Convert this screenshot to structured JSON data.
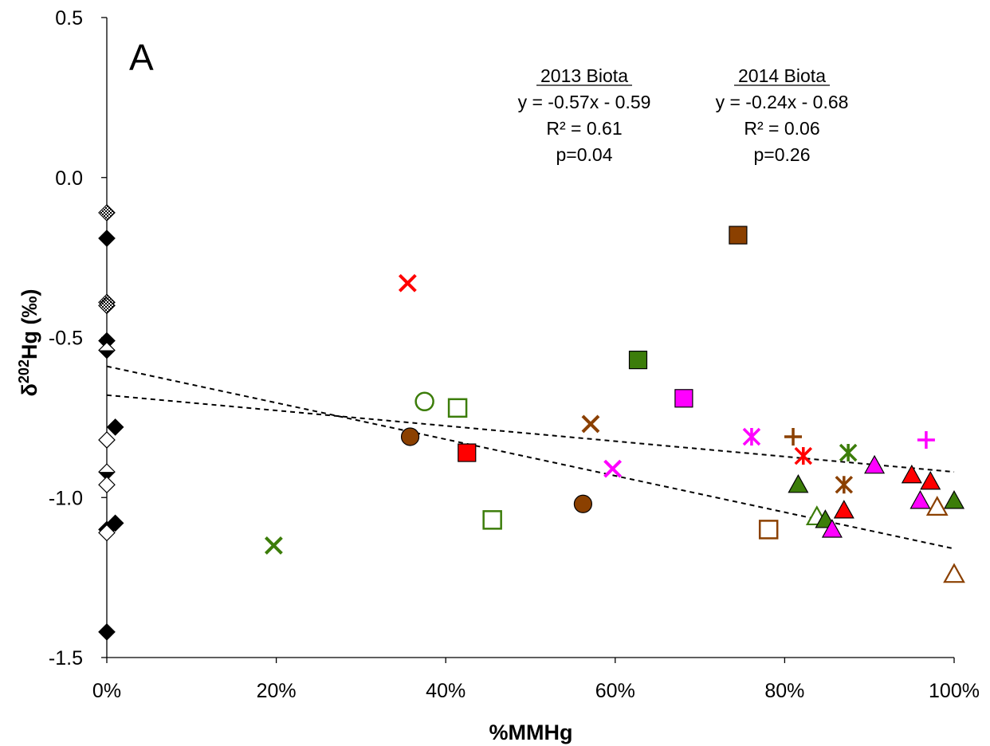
{
  "chart_data": {
    "type": "scatter",
    "panel_label": "A",
    "xlabel": "%MMHg",
    "ylabel_main": "δ",
    "ylabel_sup": "202",
    "ylabel_rest": "Hg (‰)",
    "xlim": [
      0,
      1
    ],
    "ylim": [
      -1.5,
      0.5
    ],
    "x_ticks": [
      {
        "value": 0,
        "label": "0%"
      },
      {
        "value": 0.2,
        "label": "20%"
      },
      {
        "value": 0.4,
        "label": "40%"
      },
      {
        "value": 0.6,
        "label": "60%"
      },
      {
        "value": 0.8,
        "label": "80%"
      },
      {
        "value": 1.0,
        "label": "100%"
      }
    ],
    "y_ticks": [
      {
        "value": 0.5,
        "label": "0.5"
      },
      {
        "value": 0.0,
        "label": "0.0"
      },
      {
        "value": -0.5,
        "label": "-0.5"
      },
      {
        "value": -1.0,
        "label": "-1.0"
      },
      {
        "value": -1.5,
        "label": "-1.5"
      }
    ],
    "grid": false,
    "legend": "none",
    "annotations": [
      {
        "heading": "2013 Biota",
        "lines": [
          "y = -0.57x - 0.59",
          "R² = 0.61",
          "p=0.04"
        ]
      },
      {
        "heading": "2014 Biota",
        "lines": [
          "y = -0.24x - 0.68",
          "R² = 0.06",
          "p=0.26"
        ]
      }
    ],
    "trendlines": [
      {
        "slope": -0.57,
        "intercept": -0.59,
        "x_range": [
          0,
          1
        ],
        "style": "dashed",
        "color": "#000000"
      },
      {
        "slope": -0.24,
        "intercept": -0.68,
        "x_range": [
          0,
          1
        ],
        "style": "dashed",
        "color": "#000000"
      }
    ],
    "colors": {
      "red": "#ff0000",
      "green": "#3c7d0a",
      "brown": "#8b4000",
      "magenta": "#ff00ff",
      "black": "#000000"
    },
    "points": [
      {
        "x": 0.0,
        "y": -0.11,
        "marker": "diamond",
        "fill": "hatch",
        "color": "#000000"
      },
      {
        "x": 0.0,
        "y": -0.19,
        "marker": "diamond",
        "fill": "solid",
        "color": "#000000"
      },
      {
        "x": 0.0,
        "y": -0.39,
        "marker": "diamond",
        "fill": "hatch",
        "color": "#000000"
      },
      {
        "x": 0.0,
        "y": -0.4,
        "marker": "diamond",
        "fill": "hatch",
        "color": "#000000"
      },
      {
        "x": 0.0,
        "y": -0.51,
        "marker": "diamond",
        "fill": "solid",
        "color": "#000000"
      },
      {
        "x": 0.0,
        "y": -0.54,
        "marker": "diamond",
        "fill": "half",
        "color": "#000000"
      },
      {
        "x": 0.01,
        "y": -0.78,
        "marker": "diamond",
        "fill": "solid",
        "color": "#000000"
      },
      {
        "x": 0.0,
        "y": -0.82,
        "marker": "diamond",
        "fill": "open",
        "color": "#000000"
      },
      {
        "x": 0.0,
        "y": -0.92,
        "marker": "diamond",
        "fill": "half",
        "color": "#000000"
      },
      {
        "x": 0.0,
        "y": -0.96,
        "marker": "diamond",
        "fill": "open",
        "color": "#000000"
      },
      {
        "x": 0.01,
        "y": -1.08,
        "marker": "diamond",
        "fill": "solid",
        "color": "#000000"
      },
      {
        "x": 0.0,
        "y": -1.1,
        "marker": "diamond",
        "fill": "solid",
        "color": "#000000"
      },
      {
        "x": 0.0,
        "y": -1.11,
        "marker": "diamond",
        "fill": "open",
        "color": "#000000"
      },
      {
        "x": 0.0,
        "y": -1.42,
        "marker": "diamond",
        "fill": "solid",
        "color": "#000000"
      },
      {
        "x": 0.355,
        "y": -0.33,
        "marker": "x",
        "fill": "line",
        "color": "#ff0000"
      },
      {
        "x": 0.425,
        "y": -0.86,
        "marker": "square",
        "fill": "solid",
        "color": "#ff0000"
      },
      {
        "x": 0.822,
        "y": -0.87,
        "marker": "star",
        "fill": "line",
        "color": "#ff0000"
      },
      {
        "x": 0.87,
        "y": -1.04,
        "marker": "triangle",
        "fill": "solid",
        "color": "#ff0000"
      },
      {
        "x": 0.95,
        "y": -0.93,
        "marker": "triangle",
        "fill": "solid",
        "color": "#ff0000"
      },
      {
        "x": 0.972,
        "y": -0.95,
        "marker": "triangle",
        "fill": "solid",
        "color": "#ff0000"
      },
      {
        "x": 0.197,
        "y": -1.15,
        "marker": "x",
        "fill": "line",
        "color": "#3c7d0a"
      },
      {
        "x": 0.375,
        "y": -0.7,
        "marker": "circle",
        "fill": "open",
        "color": "#3c7d0a"
      },
      {
        "x": 0.414,
        "y": -0.72,
        "marker": "square",
        "fill": "open",
        "color": "#3c7d0a"
      },
      {
        "x": 0.455,
        "y": -1.07,
        "marker": "square",
        "fill": "open",
        "color": "#3c7d0a"
      },
      {
        "x": 0.627,
        "y": -0.57,
        "marker": "square",
        "fill": "solid",
        "color": "#3c7d0a"
      },
      {
        "x": 0.816,
        "y": -0.96,
        "marker": "triangle",
        "fill": "solid",
        "color": "#3c7d0a"
      },
      {
        "x": 0.838,
        "y": -1.06,
        "marker": "triangle",
        "fill": "open",
        "color": "#3c7d0a"
      },
      {
        "x": 0.848,
        "y": -1.07,
        "marker": "triangle",
        "fill": "solid",
        "color": "#3c7d0a"
      },
      {
        "x": 0.875,
        "y": -0.86,
        "marker": "star",
        "fill": "line",
        "color": "#3c7d0a"
      },
      {
        "x": 1.0,
        "y": -1.01,
        "marker": "triangle",
        "fill": "solid",
        "color": "#3c7d0a"
      },
      {
        "x": 0.358,
        "y": -0.81,
        "marker": "circle",
        "fill": "solid",
        "color": "#8b4000"
      },
      {
        "x": 0.562,
        "y": -1.02,
        "marker": "circle",
        "fill": "solid",
        "color": "#8b4000"
      },
      {
        "x": 0.571,
        "y": -0.77,
        "marker": "x",
        "fill": "line",
        "color": "#8b4000"
      },
      {
        "x": 0.745,
        "y": -0.18,
        "marker": "square",
        "fill": "solid",
        "color": "#8b4000"
      },
      {
        "x": 0.781,
        "y": -1.1,
        "marker": "square",
        "fill": "open",
        "color": "#8b4000"
      },
      {
        "x": 0.81,
        "y": -0.81,
        "marker": "plus",
        "fill": "line",
        "color": "#8b4000"
      },
      {
        "x": 0.87,
        "y": -0.96,
        "marker": "star",
        "fill": "line",
        "color": "#8b4000"
      },
      {
        "x": 0.98,
        "y": -1.03,
        "marker": "triangle",
        "fill": "open",
        "color": "#8b4000"
      },
      {
        "x": 1.0,
        "y": -1.24,
        "marker": "triangle",
        "fill": "open",
        "color": "#8b4000"
      },
      {
        "x": 0.597,
        "y": -0.91,
        "marker": "x",
        "fill": "line",
        "color": "#ff00ff"
      },
      {
        "x": 0.681,
        "y": -0.69,
        "marker": "square",
        "fill": "solid",
        "color": "#ff00ff"
      },
      {
        "x": 0.761,
        "y": -0.81,
        "marker": "star",
        "fill": "line",
        "color": "#ff00ff"
      },
      {
        "x": 0.856,
        "y": -1.1,
        "marker": "triangle",
        "fill": "solid",
        "color": "#ff00ff"
      },
      {
        "x": 0.906,
        "y": -0.9,
        "marker": "triangle",
        "fill": "solid",
        "color": "#ff00ff"
      },
      {
        "x": 0.96,
        "y": -1.01,
        "marker": "triangle",
        "fill": "solid",
        "color": "#ff00ff"
      },
      {
        "x": 0.967,
        "y": -0.82,
        "marker": "plus",
        "fill": "line",
        "color": "#ff00ff"
      }
    ]
  }
}
